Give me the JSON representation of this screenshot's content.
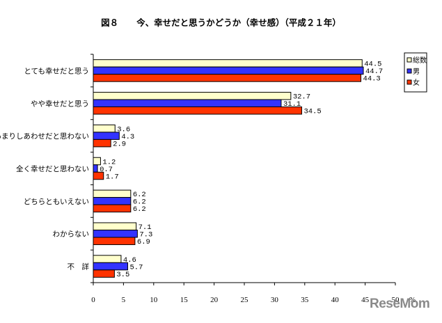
{
  "header": {
    "figure_number": "図８",
    "title": "今、幸せだと思うかどうか（幸せ感）（平成２１年）"
  },
  "watermark": "ReseMom",
  "chart_data": {
    "type": "bar",
    "orientation": "horizontal",
    "title": "今、幸せだと思うかどうか（幸せ感）（平成２１年）",
    "categories": [
      "とても幸せだと思う",
      "やや幸せだと思う",
      "あまりしあわせだと思わない",
      "全く幸せだと思わない",
      "どちらともいえない",
      "わからない",
      "不　詳"
    ],
    "series": [
      {
        "name": "総数",
        "color": "#ffffcc",
        "values": [
          44.5,
          32.7,
          3.6,
          1.2,
          6.2,
          7.1,
          4.6
        ]
      },
      {
        "name": "男",
        "color": "#3333ff",
        "values": [
          44.7,
          31.1,
          4.3,
          0.7,
          6.2,
          7.3,
          5.7
        ]
      },
      {
        "name": "女",
        "color": "#ff3300",
        "values": [
          44.3,
          34.5,
          2.9,
          1.7,
          6.2,
          6.9,
          3.5
        ]
      }
    ],
    "value_labels": [
      [
        "44.5",
        "32.7",
        "3.6",
        "1.2",
        "6.2",
        "7.1",
        "4.6"
      ],
      [
        "44.7",
        "31.1",
        "4.3",
        "0.7",
        "6.2",
        "7.3",
        "5.7"
      ],
      [
        "44.3",
        "34.5",
        "2.9",
        "1.7",
        "6.2",
        "6.9",
        "3.5"
      ]
    ],
    "xlim": [
      0,
      50
    ],
    "xticks": [
      "0",
      "5",
      "10",
      "15",
      "20",
      "25",
      "30",
      "35",
      "40",
      "45",
      "50"
    ],
    "xunit": "%",
    "xlabel": "",
    "ylabel": "",
    "legend": [
      "総数",
      "男",
      "女"
    ],
    "legend_position": "top-right",
    "grid": false
  }
}
